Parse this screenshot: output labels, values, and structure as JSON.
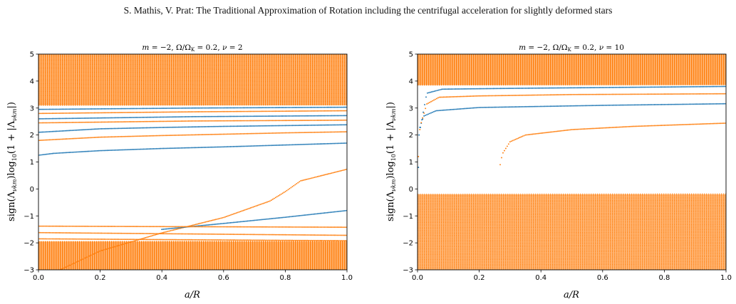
{
  "header": "S. Mathis, V. Prat: The Traditional Approximation of Rotation including the centrifugal acceleration for slightly deformed stars",
  "colors": {
    "blue": "#1f77b4",
    "orange": "#ff7f0e"
  },
  "chart_data": [
    {
      "type": "scatter",
      "title": "m = −2,  Ω/Ω_K = 0.2,  ν = 2",
      "xlabel": "a/R",
      "ylabel": "sign(Λ_νkm) log10(1 + |Λ_νkm|)",
      "xlim": [
        0,
        1
      ],
      "ylim": [
        -3,
        5
      ],
      "xticks": [
        "0.0",
        "0.2",
        "0.4",
        "0.6",
        "0.8",
        "1.0"
      ],
      "yticks": [
        "−3",
        "−2",
        "−1",
        "0",
        "1",
        "2",
        "3",
        "4",
        "5"
      ],
      "grid": false,
      "series": [
        {
          "color": "blue",
          "points": [
            [
              0.0,
              1.25
            ],
            [
              0.05,
              1.32
            ],
            [
              0.2,
              1.42
            ],
            [
              0.4,
              1.5
            ],
            [
              0.6,
              1.56
            ],
            [
              0.8,
              1.63
            ],
            [
              1.0,
              1.7
            ]
          ]
        },
        {
          "color": "orange",
          "points": [
            [
              0.0,
              1.8
            ],
            [
              0.2,
              1.92
            ],
            [
              0.4,
              1.98
            ],
            [
              0.6,
              2.03
            ],
            [
              0.8,
              2.08
            ],
            [
              1.0,
              2.12
            ]
          ]
        },
        {
          "color": "blue",
          "points": [
            [
              0.0,
              2.1
            ],
            [
              0.2,
              2.23
            ],
            [
              0.4,
              2.28
            ],
            [
              0.6,
              2.32
            ],
            [
              0.8,
              2.35
            ],
            [
              1.0,
              2.38
            ]
          ]
        },
        {
          "color": "orange",
          "points": [
            [
              0.0,
              2.45
            ],
            [
              0.5,
              2.52
            ],
            [
              1.0,
              2.55
            ]
          ]
        },
        {
          "color": "blue",
          "points": [
            [
              0.0,
              2.6
            ],
            [
              0.5,
              2.68
            ],
            [
              1.0,
              2.72
            ]
          ]
        },
        {
          "color": "orange",
          "points": [
            [
              0.0,
              2.8
            ],
            [
              0.5,
              2.86
            ],
            [
              1.0,
              2.9
            ]
          ]
        },
        {
          "color": "blue",
          "points": [
            [
              0.0,
              2.95
            ],
            [
              0.5,
              3.0
            ],
            [
              1.0,
              3.03
            ]
          ]
        },
        {
          "color": "orange",
          "points": [
            [
              0.07,
              -3.0
            ],
            [
              0.2,
              -2.3
            ],
            [
              0.4,
              -1.63
            ],
            [
              0.6,
              -1.06
            ],
            [
              0.75,
              -0.45
            ],
            [
              0.8,
              -0.1
            ],
            [
              0.85,
              0.3
            ],
            [
              1.0,
              0.73
            ]
          ]
        },
        {
          "color": "blue",
          "points": [
            [
              0.4,
              -1.5
            ],
            [
              0.6,
              -1.28
            ],
            [
              0.8,
              -1.05
            ],
            [
              1.0,
              -0.8
            ]
          ]
        },
        {
          "color": "orange",
          "points": [
            [
              0.0,
              -1.38
            ],
            [
              1.0,
              -1.42
            ]
          ]
        },
        {
          "color": "orange",
          "points": [
            [
              0.0,
              -1.62
            ],
            [
              1.0,
              -1.72
            ]
          ]
        },
        {
          "color": "orange",
          "points": [
            [
              0.0,
              -1.85
            ],
            [
              1.0,
              -1.92
            ]
          ]
        }
      ],
      "note_dense_regions": [
        {
          "color": "orange",
          "y": [
            3.1,
            5.0
          ]
        },
        {
          "color": "orange",
          "y": [
            -3.0,
            -1.95
          ]
        }
      ]
    },
    {
      "type": "scatter",
      "title": "m = −2,  Ω/Ω_K = 0.2,  ν = 10",
      "xlabel": "a/R",
      "ylabel": "sign(Λ_νkm) log10(1 + |Λ_νkm|)",
      "xlim": [
        0,
        1
      ],
      "ylim": [
        -3,
        5
      ],
      "xticks": [
        "0.0",
        "0.2",
        "0.4",
        "0.6",
        "0.8",
        "1.0"
      ],
      "yticks": [
        "−3",
        "−2",
        "−1",
        "0",
        "1",
        "2",
        "3",
        "4",
        "5"
      ],
      "grid": false,
      "series": [
        {
          "color": "blue",
          "points": [
            [
              0.003,
              0.8
            ],
            [
              0.005,
              2.2
            ],
            [
              0.02,
              2.7
            ],
            [
              0.06,
              2.9
            ],
            [
              0.2,
              3.02
            ],
            [
              0.4,
              3.06
            ],
            [
              0.6,
              3.1
            ],
            [
              0.8,
              3.13
            ],
            [
              1.0,
              3.16
            ]
          ]
        },
        {
          "color": "orange",
          "points": [
            [
              0.003,
              1.2
            ],
            [
              0.008,
              2.3
            ],
            [
              0.03,
              3.15
            ],
            [
              0.07,
              3.4
            ],
            [
              0.2,
              3.45
            ],
            [
              0.5,
              3.5
            ],
            [
              1.0,
              3.53
            ]
          ]
        },
        {
          "color": "blue",
          "points": [
            [
              0.005,
              2.0
            ],
            [
              0.03,
              3.55
            ],
            [
              0.08,
              3.7
            ],
            [
              0.3,
              3.73
            ],
            [
              1.0,
              3.8
            ]
          ]
        },
        {
          "color": "orange",
          "points": [
            [
              0.268,
              0.9
            ],
            [
              0.275,
              1.3
            ],
            [
              0.3,
              1.75
            ],
            [
              0.35,
              2.0
            ],
            [
              0.5,
              2.2
            ],
            [
              0.7,
              2.32
            ],
            [
              0.9,
              2.4
            ],
            [
              1.0,
              2.44
            ]
          ]
        }
      ],
      "note_dense_regions": [
        {
          "color": "orange",
          "y": [
            3.85,
            5.0
          ]
        },
        {
          "color": "orange",
          "y": [
            -3.0,
            -0.2
          ]
        }
      ]
    }
  ]
}
